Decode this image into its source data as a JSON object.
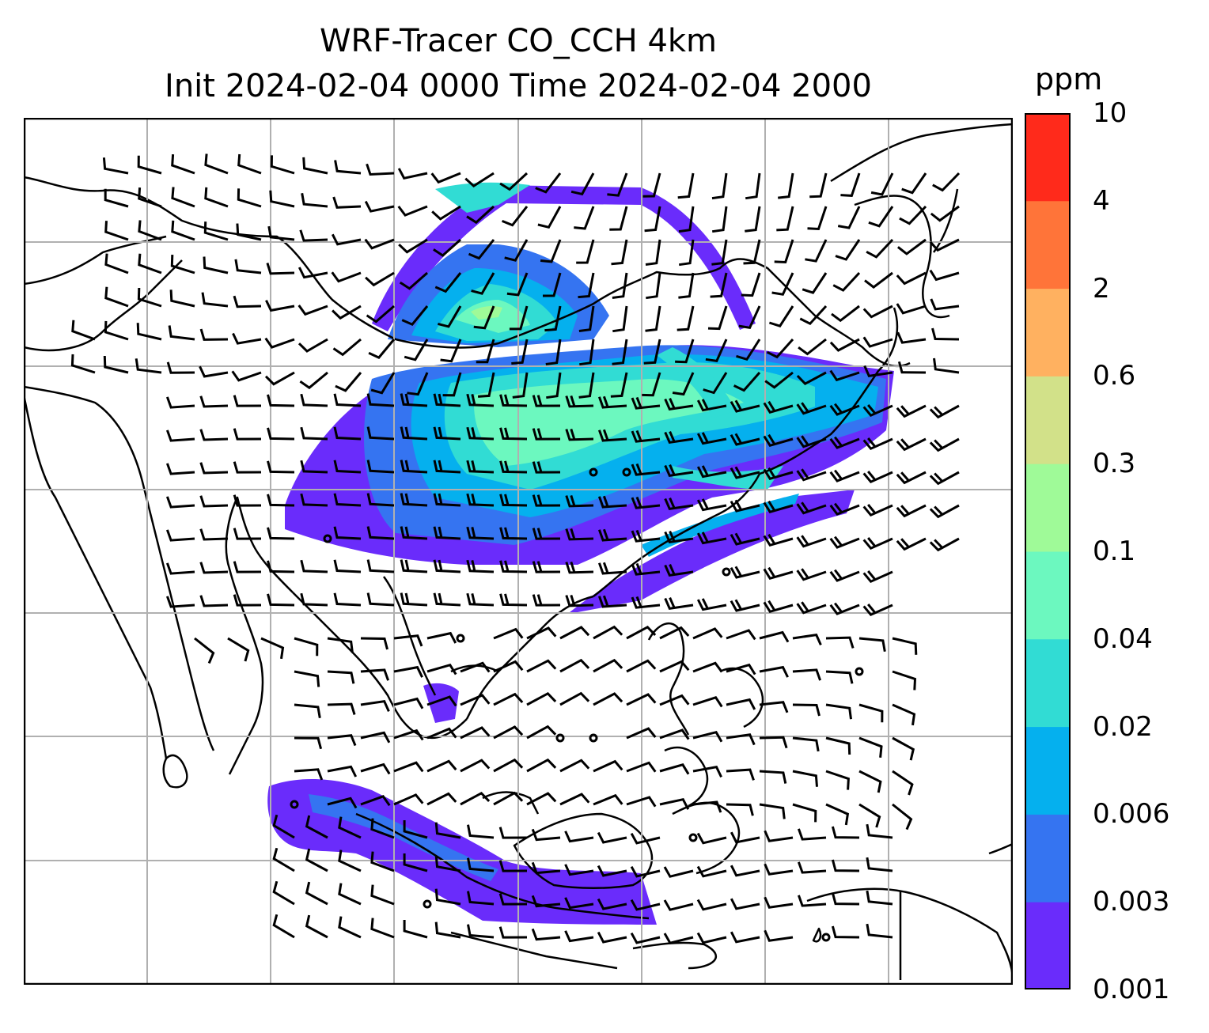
{
  "title": {
    "line1": "WRF-Tracer CO_CCH 4km",
    "line2": "Init 2024-02-04 0000 Time 2024-02-04 2000"
  },
  "colorbar": {
    "unit_label": "ppm",
    "levels": [
      "0.001",
      "0.003",
      "0.006",
      "0.02",
      "0.04",
      "0.1",
      "0.3",
      "0.6",
      "2",
      "4",
      "10"
    ],
    "colors": [
      "#6a2cfb",
      "#3574f1",
      "#05b0ee",
      "#31dcd4",
      "#6cf8bf",
      "#9ffa98",
      "#d2e189",
      "#ffb160",
      "#ff7439",
      "#ff2a1b"
    ]
  },
  "map": {
    "gridlines": "on",
    "overlay": "wind-barbs",
    "field": "CO_CCH tracer concentration"
  }
}
